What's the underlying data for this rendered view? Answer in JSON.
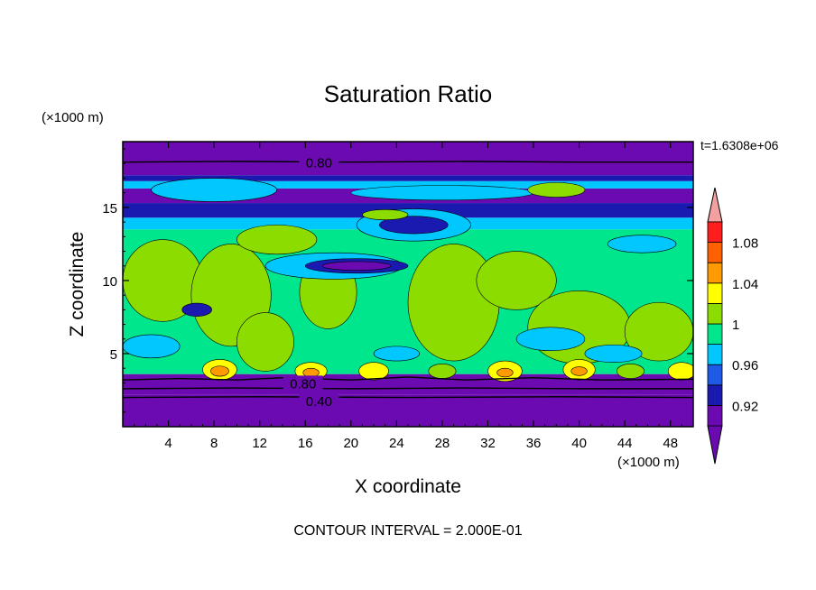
{
  "chart_data": {
    "type": "heatmap",
    "title": "Saturation Ratio",
    "xlabel": "X coordinate",
    "ylabel": "Z coordinate",
    "x_unit": "(×1000 m)",
    "y_unit": "(×1000 m)",
    "time_label": "t=1.6308e+06",
    "footer": "CONTOUR INTERVAL = 2.000E-01",
    "xlim": [
      0,
      50
    ],
    "ylim": [
      0,
      19.5
    ],
    "x_ticks": [
      4,
      8,
      12,
      16,
      20,
      24,
      28,
      32,
      36,
      40,
      44,
      48
    ],
    "y_ticks": [
      5,
      10,
      15
    ],
    "contour_labels": [
      {
        "text": "0.80",
        "x": 17.2,
        "y": 18.1
      },
      {
        "text": "0.80",
        "x": 15.8,
        "y": 3.0
      },
      {
        "text": "0.40",
        "x": 17.2,
        "y": 1.8
      }
    ],
    "colorbar": {
      "levels": [
        0.9,
        0.92,
        0.94,
        0.96,
        0.98,
        1.0,
        1.02,
        1.04,
        1.06,
        1.08,
        1.1
      ],
      "tick_labels": [
        "0.92",
        "0.96",
        "1",
        "1.04",
        "1.08"
      ],
      "tick_values": [
        0.92,
        0.96,
        1.0,
        1.04,
        1.08
      ],
      "colors": [
        "#6a0ab0",
        "#1a1ab0",
        "#1e5ae6",
        "#00c8ff",
        "#00e68c",
        "#8cdc00",
        "#ffff00",
        "#ff9a00",
        "#ff6000",
        "#ff1e1e"
      ],
      "under_color": "#6a0ab0",
      "over_color": "#f5a0a0"
    },
    "layers": [
      {
        "z0": 0,
        "z1": 2.2,
        "value": 0.85
      },
      {
        "z0": 2.2,
        "z1": 3.6,
        "value": 0.89
      },
      {
        "z0": 3.6,
        "z1": 13.5,
        "value": 0.99
      },
      {
        "z0": 13.5,
        "z1": 14.3,
        "value": 0.97
      },
      {
        "z0": 14.3,
        "z1": 15.3,
        "value": 0.93
      },
      {
        "z0": 15.3,
        "z1": 16.3,
        "value": 0.89
      },
      {
        "z0": 16.3,
        "z1": 16.8,
        "value": 0.97
      },
      {
        "z0": 16.8,
        "z1": 17.2,
        "value": 0.93
      },
      {
        "z0": 17.2,
        "z1": 19.5,
        "value": 0.89
      }
    ],
    "features": [
      {
        "value": 1.01,
        "x": 3.5,
        "z": 10.0,
        "rx": 3.5,
        "rz": 2.8
      },
      {
        "value": 1.01,
        "x": 9.5,
        "z": 9.0,
        "rx": 3.5,
        "rz": 3.5
      },
      {
        "value": 1.01,
        "x": 18.0,
        "z": 9.2,
        "rx": 2.5,
        "rz": 2.5
      },
      {
        "value": 1.01,
        "x": 29.0,
        "z": 8.5,
        "rx": 4.0,
        "rz": 4.0
      },
      {
        "value": 1.01,
        "x": 34.5,
        "z": 10.0,
        "rx": 3.5,
        "rz": 2.0
      },
      {
        "value": 1.01,
        "x": 40.0,
        "z": 6.8,
        "rx": 4.5,
        "rz": 2.5
      },
      {
        "value": 1.01,
        "x": 47.0,
        "z": 6.5,
        "rx": 3.0,
        "rz": 2.0
      },
      {
        "value": 1.01,
        "x": 12.5,
        "z": 5.8,
        "rx": 2.5,
        "rz": 2.0
      },
      {
        "value": 1.01,
        "x": 13.5,
        "z": 12.8,
        "rx": 3.5,
        "rz": 1.0
      },
      {
        "value": 0.97,
        "x": 18.5,
        "z": 11.0,
        "rx": 6.0,
        "rz": 0.9
      },
      {
        "value": 0.93,
        "x": 20.5,
        "z": 11.0,
        "rx": 4.5,
        "rz": 0.5
      },
      {
        "value": 0.91,
        "x": 20.5,
        "z": 11.0,
        "rx": 3.0,
        "rz": 0.3
      },
      {
        "value": 0.93,
        "x": 6.5,
        "z": 8.0,
        "rx": 1.3,
        "rz": 0.45
      },
      {
        "value": 0.97,
        "x": 25.5,
        "z": 13.8,
        "rx": 5.0,
        "rz": 1.1
      },
      {
        "value": 0.93,
        "x": 25.5,
        "z": 13.8,
        "rx": 3.0,
        "rz": 0.6
      },
      {
        "value": 0.97,
        "x": 8.0,
        "z": 16.2,
        "rx": 5.5,
        "rz": 0.8
      },
      {
        "value": 0.97,
        "x": 28.0,
        "z": 16.0,
        "rx": 8.0,
        "rz": 0.5
      },
      {
        "value": 1.01,
        "x": 38.0,
        "z": 16.2,
        "rx": 2.5,
        "rz": 0.5
      },
      {
        "value": 1.01,
        "x": 23.0,
        "z": 14.5,
        "rx": 2.0,
        "rz": 0.35
      },
      {
        "value": 0.97,
        "x": 45.5,
        "z": 12.5,
        "rx": 3.0,
        "rz": 0.6
      },
      {
        "value": 0.97,
        "x": 2.5,
        "z": 5.5,
        "rx": 2.5,
        "rz": 0.8
      },
      {
        "value": 0.97,
        "x": 37.5,
        "z": 6.0,
        "rx": 3.0,
        "rz": 0.8
      },
      {
        "value": 0.97,
        "x": 43.0,
        "z": 5.0,
        "rx": 2.5,
        "rz": 0.6
      },
      {
        "value": 0.97,
        "x": 24.0,
        "z": 5.0,
        "rx": 2.0,
        "rz": 0.5
      },
      {
        "value": 1.03,
        "x": 8.5,
        "z": 3.9,
        "rx": 1.5,
        "rz": 0.7
      },
      {
        "value": 1.05,
        "x": 8.5,
        "z": 3.8,
        "rx": 0.8,
        "rz": 0.35
      },
      {
        "value": 1.03,
        "x": 16.5,
        "z": 3.8,
        "rx": 1.4,
        "rz": 0.6
      },
      {
        "value": 1.05,
        "x": 16.5,
        "z": 3.7,
        "rx": 0.7,
        "rz": 0.3
      },
      {
        "value": 1.03,
        "x": 22.0,
        "z": 3.8,
        "rx": 1.3,
        "rz": 0.6
      },
      {
        "value": 1.03,
        "x": 33.5,
        "z": 3.8,
        "rx": 1.5,
        "rz": 0.7
      },
      {
        "value": 1.05,
        "x": 33.5,
        "z": 3.7,
        "rx": 0.7,
        "rz": 0.3
      },
      {
        "value": 1.03,
        "x": 40.0,
        "z": 3.9,
        "rx": 1.4,
        "rz": 0.7
      },
      {
        "value": 1.05,
        "x": 40.0,
        "z": 3.8,
        "rx": 0.7,
        "rz": 0.3
      },
      {
        "value": 1.03,
        "x": 49.0,
        "z": 3.8,
        "rx": 1.2,
        "rz": 0.6
      },
      {
        "value": 1.01,
        "x": 28.0,
        "z": 3.8,
        "rx": 1.2,
        "rz": 0.5
      },
      {
        "value": 1.01,
        "x": 44.5,
        "z": 3.8,
        "rx": 1.2,
        "rz": 0.5
      }
    ],
    "contours": [
      {
        "value": 0.8,
        "points": [
          [
            0,
            18.1
          ],
          [
            10,
            18.15
          ],
          [
            20,
            18.1
          ],
          [
            30,
            18.15
          ],
          [
            40,
            18.1
          ],
          [
            50,
            18.1
          ]
        ]
      },
      {
        "value": 0.8,
        "points": [
          [
            0,
            3.2
          ],
          [
            5,
            3.3
          ],
          [
            10,
            3.2
          ],
          [
            14,
            3.35
          ],
          [
            20,
            3.2
          ],
          [
            25,
            3.4
          ],
          [
            30,
            3.2
          ],
          [
            36,
            3.35
          ],
          [
            42,
            3.2
          ],
          [
            50,
            3.25
          ]
        ]
      },
      {
        "value": 0.6,
        "points": [
          [
            0,
            2.6
          ],
          [
            10,
            2.65
          ],
          [
            20,
            2.6
          ],
          [
            30,
            2.65
          ],
          [
            40,
            2.6
          ],
          [
            50,
            2.6
          ]
        ]
      },
      {
        "value": 0.4,
        "points": [
          [
            0,
            2.0
          ],
          [
            12,
            2.05
          ],
          [
            25,
            2.0
          ],
          [
            38,
            2.05
          ],
          [
            50,
            2.0
          ]
        ]
      }
    ]
  }
}
